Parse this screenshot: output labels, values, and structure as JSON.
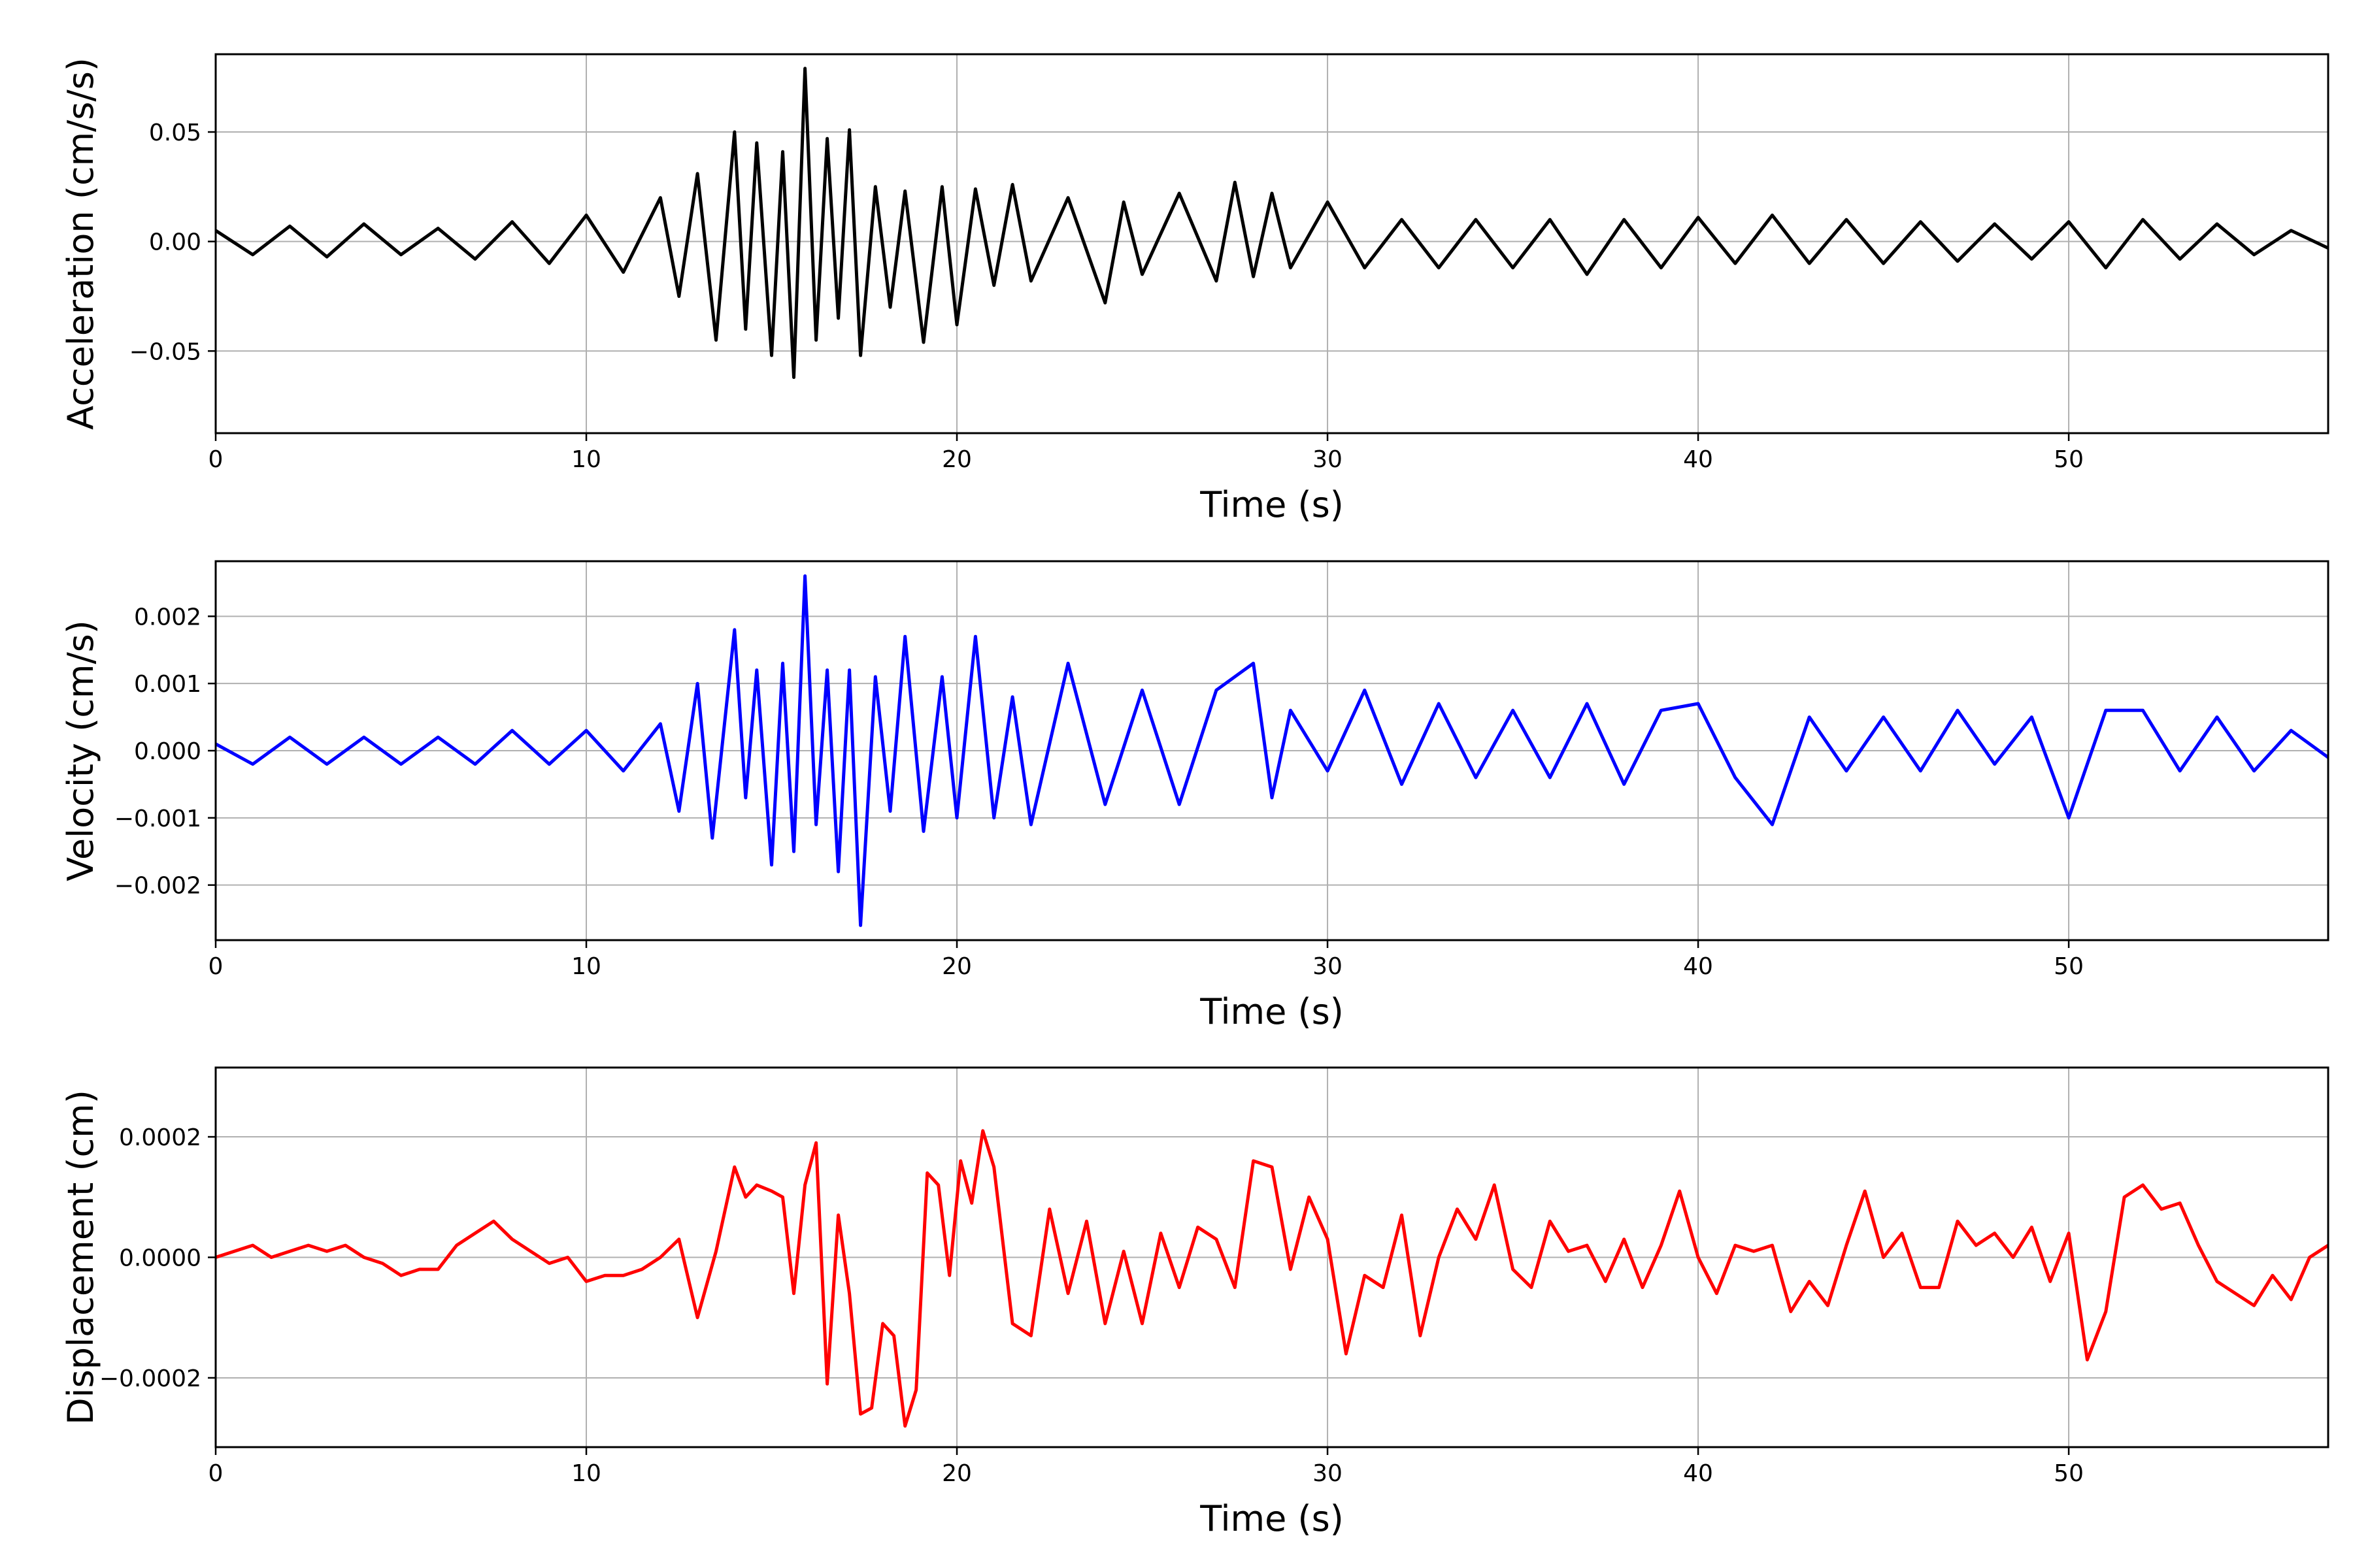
{
  "chart_data": [
    {
      "type": "line",
      "xlabel": "Time (s)",
      "ylabel": "Acceleration (cm/s/s)",
      "xlim": [
        0,
        57
      ],
      "ylim": [
        -0.0875,
        0.0855
      ],
      "xticks": [
        0,
        10,
        20,
        30,
        40,
        50
      ],
      "xtick_labels": [
        "0",
        "10",
        "20",
        "30",
        "40",
        "50"
      ],
      "yticks": [
        -0.05,
        0.0,
        0.05
      ],
      "ytick_labels": [
        "−0.05",
        "0.00",
        "0.05"
      ],
      "grid": true,
      "color": "#000000",
      "series": [
        {
          "x": [
            0,
            1,
            2,
            3,
            4,
            5,
            6,
            7,
            8,
            9,
            10,
            11,
            12,
            12.5,
            13,
            13.5,
            14,
            14.3,
            14.6,
            15,
            15.3,
            15.6,
            15.9,
            16.2,
            16.5,
            16.8,
            17.1,
            17.4,
            17.8,
            18.2,
            18.6,
            19.1,
            19.6,
            20,
            20.5,
            21,
            21.5,
            22,
            23,
            24,
            24.5,
            25,
            26,
            27,
            27.5,
            28,
            28.5,
            29,
            30,
            31,
            32,
            33,
            34,
            35,
            36,
            37,
            38,
            39,
            40,
            41,
            42,
            43,
            44,
            45,
            46,
            47,
            48,
            49,
            50,
            51,
            52,
            53,
            54,
            55,
            56,
            57
          ],
          "values": [
            0.005,
            -0.006,
            0.007,
            -0.007,
            0.008,
            -0.006,
            0.006,
            -0.008,
            0.009,
            -0.01,
            0.012,
            -0.014,
            0.02,
            -0.025,
            0.031,
            -0.045,
            0.05,
            -0.04,
            0.045,
            -0.052,
            0.041,
            -0.062,
            0.079,
            -0.045,
            0.047,
            -0.035,
            0.051,
            -0.052,
            0.025,
            -0.03,
            0.023,
            -0.046,
            0.025,
            -0.038,
            0.024,
            -0.02,
            0.026,
            -0.018,
            0.02,
            -0.028,
            0.018,
            -0.015,
            0.022,
            -0.018,
            0.027,
            -0.016,
            0.022,
            -0.012,
            0.018,
            -0.012,
            0.01,
            -0.012,
            0.01,
            -0.012,
            0.01,
            -0.015,
            0.01,
            -0.012,
            0.011,
            -0.01,
            0.012,
            -0.01,
            0.01,
            -0.01,
            0.009,
            -0.009,
            0.008,
            -0.008,
            0.009,
            -0.012,
            0.01,
            -0.008,
            0.008,
            -0.006,
            0.005,
            -0.003
          ]
        }
      ]
    },
    {
      "type": "line",
      "xlabel": "Time (s)",
      "ylabel": "Velocity (cm/s)",
      "xlim": [
        0,
        57
      ],
      "ylim": [
        -0.00282,
        0.00282
      ],
      "xticks": [
        0,
        10,
        20,
        30,
        40,
        50
      ],
      "xtick_labels": [
        "0",
        "10",
        "20",
        "30",
        "40",
        "50"
      ],
      "yticks": [
        -0.002,
        -0.001,
        0.0,
        0.001,
        0.002
      ],
      "ytick_labels": [
        "−0.002",
        "−0.001",
        "0.000",
        "0.001",
        "0.002"
      ],
      "grid": true,
      "color": "#0000ff",
      "series": [
        {
          "x": [
            0,
            1,
            2,
            3,
            4,
            5,
            6,
            7,
            8,
            9,
            10,
            11,
            12,
            12.5,
            13,
            13.4,
            14,
            14.3,
            14.6,
            15,
            15.3,
            15.6,
            15.9,
            16.2,
            16.5,
            16.8,
            17.1,
            17.4,
            17.8,
            18.2,
            18.6,
            19.1,
            19.6,
            20,
            20.5,
            21,
            21.5,
            22,
            23,
            24,
            25,
            26,
            27,
            28,
            28.5,
            29,
            30,
            31,
            32,
            33,
            34,
            35,
            36,
            37,
            38,
            39,
            40,
            41,
            42,
            43,
            44,
            45,
            46,
            47,
            48,
            49,
            50,
            51,
            52,
            53,
            54,
            55,
            56,
            57
          ],
          "values": [
            0.0001,
            -0.0002,
            0.0002,
            -0.0002,
            0.0002,
            -0.0002,
            0.0002,
            -0.0002,
            0.0003,
            -0.0002,
            0.0003,
            -0.0003,
            0.0004,
            -0.0009,
            0.001,
            -0.0013,
            0.0018,
            -0.0007,
            0.0012,
            -0.0017,
            0.0013,
            -0.0015,
            0.0026,
            -0.0011,
            0.0012,
            -0.0018,
            0.0012,
            -0.0026,
            0.0011,
            -0.0009,
            0.0017,
            -0.0012,
            0.0011,
            -0.001,
            0.0017,
            -0.001,
            0.0008,
            -0.0011,
            0.0013,
            -0.0008,
            0.0009,
            -0.0008,
            0.0009,
            0.0013,
            -0.0007,
            0.0006,
            -0.0003,
            0.0009,
            -0.0005,
            0.0007,
            -0.0004,
            0.0006,
            -0.0004,
            0.0007,
            -0.0005,
            0.0006,
            0.0007,
            -0.0004,
            -0.0011,
            0.0005,
            -0.0003,
            0.0005,
            -0.0003,
            0.0006,
            -0.0002,
            0.0005,
            -0.001,
            0.0006,
            0.0006,
            -0.0003,
            0.0005,
            -0.0003,
            0.0003,
            -0.0001
          ]
        }
      ]
    },
    {
      "type": "line",
      "xlabel": "Time (s)",
      "ylabel": "Displacement (cm)",
      "xlim": [
        0,
        57
      ],
      "ylim": [
        -0.000315,
        0.000315
      ],
      "xticks": [
        0,
        10,
        20,
        30,
        40,
        50
      ],
      "xtick_labels": [
        "0",
        "10",
        "20",
        "30",
        "40",
        "50"
      ],
      "yticks": [
        -0.0002,
        0.0,
        0.0002
      ],
      "ytick_labels": [
        "−0.0002",
        "0.0000",
        "0.0002"
      ],
      "grid": true,
      "color": "#ff0000",
      "series": [
        {
          "x": [
            0,
            0.5,
            1,
            1.5,
            2,
            2.5,
            3,
            3.5,
            4,
            4.5,
            5,
            5.5,
            6,
            6.5,
            7,
            7.5,
            8,
            8.5,
            9,
            9.5,
            10,
            10.5,
            11,
            11.5,
            12,
            12.5,
            13,
            13.5,
            14,
            14.3,
            14.6,
            15,
            15.3,
            15.6,
            15.9,
            16.2,
            16.5,
            16.8,
            17.1,
            17.4,
            17.7,
            18,
            18.3,
            18.6,
            18.9,
            19.2,
            19.5,
            19.8,
            20.1,
            20.4,
            20.7,
            21,
            21.5,
            22,
            22.5,
            23,
            23.5,
            24,
            24.5,
            25,
            25.5,
            26,
            26.5,
            27,
            27.5,
            28,
            28.5,
            29,
            29.5,
            30,
            30.5,
            31,
            31.5,
            32,
            32.5,
            33,
            33.5,
            34,
            34.5,
            35,
            35.5,
            36,
            36.5,
            37,
            37.5,
            38,
            38.5,
            39,
            39.5,
            40,
            40.5,
            41,
            41.5,
            42,
            42.5,
            43,
            43.5,
            44,
            44.5,
            45,
            45.5,
            46,
            46.5,
            47,
            47.5,
            48,
            48.5,
            49,
            49.5,
            50,
            50.5,
            51,
            51.5,
            52,
            52.5,
            53,
            53.5,
            54,
            54.5,
            55,
            55.5,
            56,
            56.5,
            57
          ],
          "values": [
            0.0,
            1e-05,
            2e-05,
            0.0,
            1e-05,
            2e-05,
            1e-05,
            2e-05,
            0.0,
            -1e-05,
            -3e-05,
            -2e-05,
            -2e-05,
            2e-05,
            4e-05,
            6e-05,
            3e-05,
            1e-05,
            -1e-05,
            0.0,
            -4e-05,
            -3e-05,
            -3e-05,
            -2e-05,
            0.0,
            3e-05,
            -0.0001,
            1e-05,
            0.00015,
            0.0001,
            0.00012,
            0.00011,
            0.0001,
            -6e-05,
            0.00012,
            0.00019,
            -0.00021,
            7e-05,
            -6e-05,
            -0.00026,
            -0.00025,
            -0.00011,
            -0.00013,
            -0.00028,
            -0.00022,
            0.00014,
            0.00012,
            -3e-05,
            0.00016,
            9e-05,
            0.00021,
            0.00015,
            -0.00011,
            -0.00013,
            8e-05,
            -6e-05,
            6e-05,
            -0.00011,
            1e-05,
            -0.00011,
            4e-05,
            -5e-05,
            5e-05,
            3e-05,
            -5e-05,
            0.00016,
            0.00015,
            -2e-05,
            0.0001,
            3e-05,
            -0.00016,
            -3e-05,
            -5e-05,
            7e-05,
            -0.00013,
            0.0,
            8e-05,
            3e-05,
            0.00012,
            -2e-05,
            -5e-05,
            6e-05,
            1e-05,
            2e-05,
            -4e-05,
            3e-05,
            -5e-05,
            2e-05,
            0.00011,
            0.0,
            -6e-05,
            2e-05,
            1e-05,
            2e-05,
            -9e-05,
            -4e-05,
            -8e-05,
            2e-05,
            0.00011,
            0.0,
            4e-05,
            -5e-05,
            -5e-05,
            6e-05,
            2e-05,
            4e-05,
            0.0,
            5e-05,
            -4e-05,
            4e-05,
            -0.00017,
            -9e-05,
            0.0001,
            0.00012,
            8e-05,
            9e-05,
            2e-05,
            -4e-05,
            -6e-05,
            -8e-05,
            -3e-05,
            -7e-05,
            0.0,
            2e-05
          ]
        }
      ]
    }
  ]
}
